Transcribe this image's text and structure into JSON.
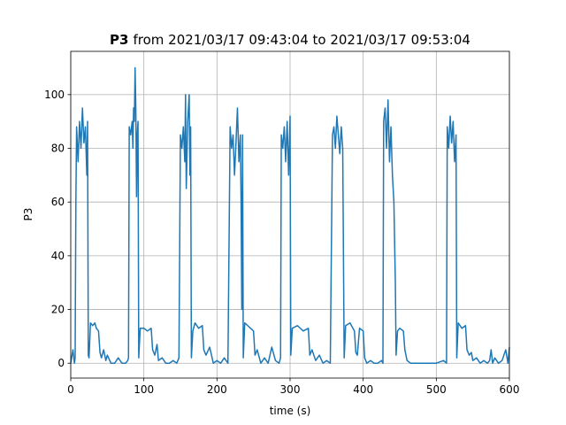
{
  "chart_data": {
    "type": "line",
    "title_bold": "P3",
    "title": "from 2021/03/17 09:43:04 to 2021/03/17 09:53:04",
    "xlabel": "time (s)",
    "ylabel": "P3",
    "xlim": [
      0,
      600
    ],
    "ylim": [
      -5.53,
      116.1
    ],
    "xticks": [
      0,
      100,
      200,
      300,
      400,
      500,
      600
    ],
    "yticks": [
      0,
      20,
      40,
      60,
      80,
      100
    ],
    "grid": true,
    "series": [
      {
        "color": "#1f77b4",
        "x": [
          0,
          3,
          5,
          6,
          7,
          8,
          10,
          12,
          14,
          16,
          18,
          20,
          22,
          23,
          24,
          25,
          27,
          30,
          33,
          35,
          38,
          40,
          42,
          45,
          48,
          50,
          55,
          60,
          65,
          70,
          75,
          78,
          79,
          80,
          82,
          84,
          85,
          86,
          87,
          88,
          89,
          90,
          91,
          92,
          93,
          95,
          100,
          105,
          110,
          112,
          115,
          118,
          120,
          125,
          130,
          135,
          140,
          145,
          148,
          150,
          152,
          154,
          156,
          157,
          158,
          160,
          162,
          163,
          164,
          165,
          167,
          170,
          175,
          180,
          182,
          185,
          190,
          195,
          200,
          205,
          210,
          215,
          218,
          220,
          222,
          224,
          226,
          228,
          230,
          232,
          233,
          234,
          235,
          236,
          238,
          242,
          246,
          250,
          252,
          255,
          260,
          265,
          270,
          275,
          280,
          285,
          287,
          288,
          290,
          292,
          294,
          296,
          298,
          300,
          301,
          303,
          310,
          318,
          325,
          327,
          330,
          335,
          340,
          345,
          350,
          355,
          358,
          360,
          362,
          364,
          366,
          368,
          370,
          372,
          374,
          376,
          382,
          388,
          390,
          392,
          395,
          400,
          402,
          405,
          410,
          415,
          420,
          425,
          427,
          428,
          430,
          432,
          434,
          436,
          438,
          440,
          442,
          443,
          444,
          445,
          447,
          450,
          455,
          457,
          460,
          465,
          470,
          480,
          490,
          500,
          510,
          514,
          515,
          517,
          519,
          521,
          523,
          525,
          527,
          528,
          530,
          535,
          540,
          542,
          545,
          548,
          550,
          555,
          560,
          565,
          570,
          573,
          575,
          577,
          580,
          585,
          590,
          595,
          598,
          600
        ],
        "values": [
          0,
          5,
          0,
          2,
          60,
          88,
          75,
          90,
          80,
          95,
          82,
          88,
          70,
          90,
          3,
          2,
          15,
          14,
          15,
          13,
          12,
          4,
          2,
          5,
          1,
          3,
          0,
          0,
          2,
          0,
          0,
          1,
          2,
          88,
          85,
          90,
          80,
          95,
          90,
          110,
          95,
          62,
          85,
          90,
          2,
          13,
          13,
          12,
          13,
          5,
          3,
          7,
          1,
          2,
          0,
          0,
          1,
          0,
          2,
          85,
          80,
          88,
          75,
          100,
          65,
          90,
          100,
          70,
          88,
          2,
          12,
          15,
          13,
          14,
          5,
          3,
          6,
          0,
          1,
          0,
          2,
          0,
          88,
          80,
          85,
          70,
          82,
          95,
          75,
          85,
          60,
          20,
          85,
          2,
          15,
          14,
          13,
          12,
          3,
          5,
          0,
          2,
          0,
          6,
          1,
          0,
          2,
          85,
          80,
          88,
          75,
          90,
          70,
          92,
          3,
          13,
          14,
          12,
          13,
          3,
          5,
          1,
          3,
          0,
          1,
          0,
          85,
          88,
          80,
          92,
          85,
          78,
          88,
          80,
          2,
          14,
          15,
          12,
          4,
          3,
          13,
          12,
          2,
          0,
          1,
          0,
          0,
          1,
          0,
          90,
          95,
          80,
          98,
          75,
          88,
          70,
          60,
          45,
          30,
          3,
          12,
          13,
          12,
          5,
          1,
          0,
          0,
          0,
          0,
          0,
          1,
          0,
          88,
          80,
          92,
          82,
          90,
          75,
          85,
          2,
          15,
          13,
          14,
          5,
          3,
          4,
          1,
          2,
          0,
          1,
          0,
          1,
          5,
          0,
          2,
          0,
          1,
          5,
          0,
          6
        ]
      }
    ]
  }
}
